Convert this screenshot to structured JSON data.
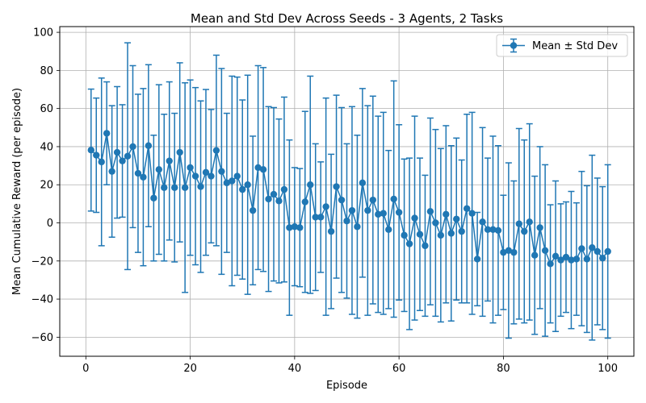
{
  "chart_data": {
    "type": "errorbar",
    "title": "Mean and Std Dev Across Seeds - 3 Agents, 2 Tasks",
    "xlabel": "Episode",
    "ylabel": "Mean Cumulative Reward (per episode)",
    "xlim": [
      -5,
      105
    ],
    "ylim": [
      -70,
      103
    ],
    "xticks": [
      0,
      20,
      40,
      60,
      80,
      100
    ],
    "yticks": [
      -60,
      -40,
      -20,
      0,
      20,
      40,
      60,
      80,
      100
    ],
    "grid": true,
    "legend_position": "top-right",
    "colors": {
      "series": "#1f77b4",
      "grid": "#b0b0b0"
    },
    "series": [
      {
        "name": "Mean ± Std Dev",
        "x": [
          1,
          2,
          3,
          4,
          5,
          6,
          7,
          8,
          9,
          10,
          11,
          12,
          13,
          14,
          15,
          16,
          17,
          18,
          19,
          20,
          21,
          22,
          23,
          24,
          25,
          26,
          27,
          28,
          29,
          30,
          31,
          32,
          33,
          34,
          35,
          36,
          37,
          38,
          39,
          40,
          41,
          42,
          43,
          44,
          45,
          46,
          47,
          48,
          49,
          50,
          51,
          52,
          53,
          54,
          55,
          56,
          57,
          58,
          59,
          60,
          61,
          62,
          63,
          64,
          65,
          66,
          67,
          68,
          69,
          70,
          71,
          72,
          73,
          74,
          75,
          76,
          77,
          78,
          79,
          80,
          81,
          82,
          83,
          84,
          85,
          86,
          87,
          88,
          89,
          90,
          91,
          92,
          93,
          94,
          95,
          96,
          97,
          98,
          99,
          100
        ],
        "mean": [
          38.2,
          35.5,
          32.0,
          47.0,
          27.0,
          37.0,
          32.5,
          35.0,
          40.0,
          26.0,
          24.0,
          40.5,
          13.0,
          28.0,
          18.5,
          32.5,
          18.5,
          37.0,
          18.5,
          29.0,
          24.5,
          19.0,
          26.5,
          24.5,
          38.0,
          27.0,
          21.0,
          22.0,
          24.5,
          17.5,
          20.0,
          6.5,
          29.0,
          28.0,
          12.5,
          15.0,
          11.5,
          17.5,
          -2.5,
          -2.0,
          -2.5,
          11.0,
          20.0,
          3.0,
          3.0,
          8.5,
          -4.5,
          19.0,
          12.0,
          1.0,
          6.5,
          -2.0,
          21.0,
          6.5,
          12.0,
          4.5,
          5.0,
          -3.5,
          12.5,
          5.5,
          -6.5,
          -11.0,
          2.5,
          -6.0,
          -12.0,
          6.0,
          0.0,
          -6.5,
          4.5,
          -5.5,
          2.0,
          -4.5,
          7.5,
          5.0,
          -19.0,
          0.5,
          -3.5,
          -3.5,
          -4.0,
          -15.5,
          -14.5,
          -15.5,
          -0.5,
          -4.5,
          0.5,
          -17.0,
          -2.5,
          -14.5,
          -21.5,
          -17.5,
          -19.5,
          -18.0,
          -19.5,
          -19.0,
          -13.5,
          -19.0,
          -13.0,
          -15.0,
          -18.5,
          -15.0
        ],
        "std": [
          32.0,
          30.0,
          44.0,
          27.0,
          34.5,
          34.5,
          29.5,
          59.5,
          42.5,
          41.5,
          46.5,
          42.5,
          33.0,
          44.5,
          38.5,
          41.5,
          39.0,
          47.0,
          55.0,
          46.0,
          46.5,
          45.0,
          43.5,
          35.0,
          50.0,
          54.0,
          36.5,
          55.0,
          52.0,
          47.0,
          57.5,
          39.0,
          53.5,
          53.5,
          48.5,
          45.5,
          43.0,
          48.5,
          46.0,
          31.0,
          31.0,
          47.5,
          57.0,
          38.5,
          29.0,
          57.0,
          40.5,
          48.0,
          48.5,
          40.5,
          54.5,
          48.0,
          49.5,
          55.0,
          54.5,
          51.5,
          53.0,
          41.5,
          62.0,
          46.0,
          40.0,
          45.0,
          53.5,
          40.0,
          37.0,
          49.0,
          49.0,
          45.5,
          46.5,
          46.0,
          42.5,
          37.5,
          49.5,
          53.0,
          24.5,
          49.5,
          37.5,
          49.0,
          44.5,
          30.0,
          46.0,
          37.5,
          50.0,
          48.0,
          51.5,
          41.5,
          42.5,
          45.0,
          31.0,
          39.5,
          29.5,
          29.0,
          36.0,
          29.5,
          40.5,
          38.5,
          48.5,
          38.5,
          37.5,
          45.5
        ]
      }
    ]
  }
}
